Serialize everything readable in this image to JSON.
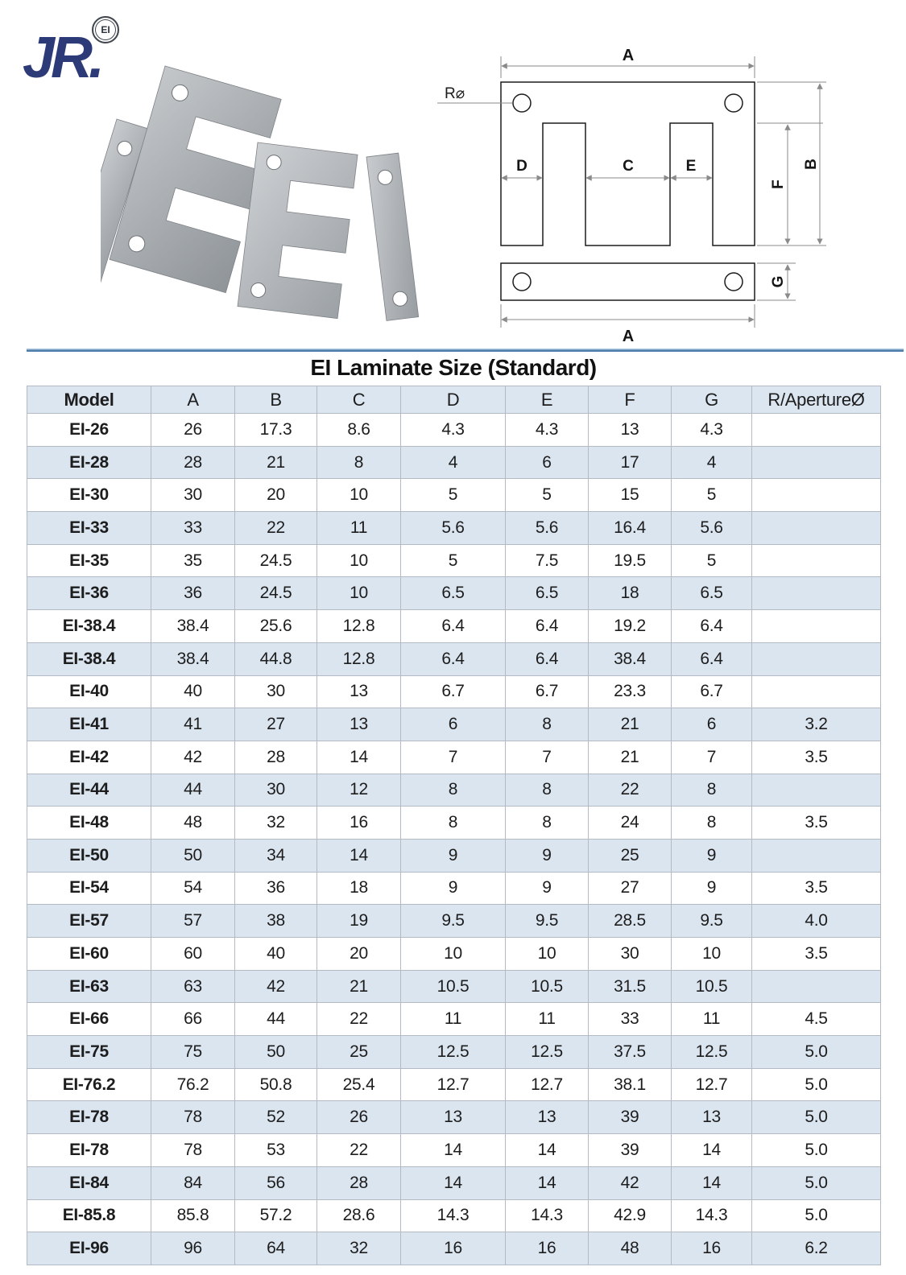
{
  "logo": {
    "brand": "JR.",
    "mark": "EI"
  },
  "diagram": {
    "labels": {
      "a_top": "A",
      "a_bottom": "A",
      "b": "B",
      "c": "C",
      "d": "D",
      "e": "E",
      "f": "F",
      "g": "G",
      "r_aperture": "R⌀"
    }
  },
  "table": {
    "title": "EI Laminate Size (Standard)",
    "columns": [
      "Model",
      "A",
      "B",
      "C",
      "D",
      "E",
      "F",
      "G",
      "R/ApertureØ"
    ],
    "rows": [
      [
        "EI-26",
        "26",
        "17.3",
        "8.6",
        "4.3",
        "4.3",
        "13",
        "4.3",
        ""
      ],
      [
        "EI-28",
        "28",
        "21",
        "8",
        "4",
        "6",
        "17",
        "4",
        ""
      ],
      [
        "EI-30",
        "30",
        "20",
        "10",
        "5",
        "5",
        "15",
        "5",
        ""
      ],
      [
        "EI-33",
        "33",
        "22",
        "11",
        "5.6",
        "5.6",
        "16.4",
        "5.6",
        ""
      ],
      [
        "EI-35",
        "35",
        "24.5",
        "10",
        "5",
        "7.5",
        "19.5",
        "5",
        ""
      ],
      [
        "EI-36",
        "36",
        "24.5",
        "10",
        "6.5",
        "6.5",
        "18",
        "6.5",
        ""
      ],
      [
        "EI-38.4",
        "38.4",
        "25.6",
        "12.8",
        "6.4",
        "6.4",
        "19.2",
        "6.4",
        ""
      ],
      [
        "EI-38.4",
        "38.4",
        "44.8",
        "12.8",
        "6.4",
        "6.4",
        "38.4",
        "6.4",
        ""
      ],
      [
        "EI-40",
        "40",
        "30",
        "13",
        "6.7",
        "6.7",
        "23.3",
        "6.7",
        ""
      ],
      [
        "EI-41",
        "41",
        "27",
        "13",
        "6",
        "8",
        "21",
        "6",
        "3.2"
      ],
      [
        "EI-42",
        "42",
        "28",
        "14",
        "7",
        "7",
        "21",
        "7",
        "3.5"
      ],
      [
        "EI-44",
        "44",
        "30",
        "12",
        "8",
        "8",
        "22",
        "8",
        ""
      ],
      [
        "EI-48",
        "48",
        "32",
        "16",
        "8",
        "8",
        "24",
        "8",
        "3.5"
      ],
      [
        "EI-50",
        "50",
        "34",
        "14",
        "9",
        "9",
        "25",
        "9",
        ""
      ],
      [
        "EI-54",
        "54",
        "36",
        "18",
        "9",
        "9",
        "27",
        "9",
        "3.5"
      ],
      [
        "EI-57",
        "57",
        "38",
        "19",
        "9.5",
        "9.5",
        "28.5",
        "9.5",
        "4.0"
      ],
      [
        "EI-60",
        "60",
        "40",
        "20",
        "10",
        "10",
        "30",
        "10",
        "3.5"
      ],
      [
        "EI-63",
        "63",
        "42",
        "21",
        "10.5",
        "10.5",
        "31.5",
        "10.5",
        ""
      ],
      [
        "EI-66",
        "66",
        "44",
        "22",
        "11",
        "11",
        "33",
        "11",
        "4.5"
      ],
      [
        "EI-75",
        "75",
        "50",
        "25",
        "12.5",
        "12.5",
        "37.5",
        "12.5",
        "5.0"
      ],
      [
        "EI-76.2",
        "76.2",
        "50.8",
        "25.4",
        "12.7",
        "12.7",
        "38.1",
        "12.7",
        "5.0"
      ],
      [
        "EI-78",
        "78",
        "52",
        "26",
        "13",
        "13",
        "39",
        "13",
        "5.0"
      ],
      [
        "EI-78",
        "78",
        "53",
        "22",
        "14",
        "14",
        "39",
        "14",
        "5.0"
      ],
      [
        "EI-84",
        "84",
        "56",
        "28",
        "14",
        "14",
        "42",
        "14",
        "5.0"
      ],
      [
        "EI-85.8",
        "85.8",
        "57.2",
        "28.6",
        "14.3",
        "14.3",
        "42.9",
        "14.3",
        "5.0"
      ],
      [
        "EI-96",
        "96",
        "64",
        "32",
        "16",
        "16",
        "48",
        "16",
        "6.2"
      ]
    ]
  },
  "colors": {
    "navy": "#2d3a78",
    "divider_dark": "#4e7cab",
    "divider_light": "#aec7e0",
    "header_bg": "#dce6f1",
    "row_alt_bg": "#dbe5f0",
    "border": "#b3bac3",
    "text": "#1d1d1d",
    "dim_line": "#8a8a8a"
  }
}
